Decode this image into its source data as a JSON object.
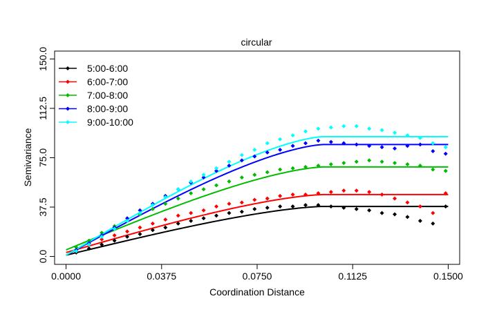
{
  "chart_data": {
    "type": "scatter",
    "title": "circular",
    "xlabel": "Coordination Distance",
    "ylabel": "Semivariance",
    "xlim": [
      -0.0045,
      0.1545
    ],
    "ylim": [
      -6.0,
      156.0
    ],
    "x_ticks": [
      0.0,
      0.0375,
      0.075,
      0.1125,
      0.15
    ],
    "x_tick_labels": [
      "0.0000",
      "0.0375",
      "0.0750",
      "0.1125",
      "0.1500"
    ],
    "y_ticks": [
      0.0,
      37.5,
      75.0,
      112.5,
      150.0
    ],
    "y_tick_labels": [
      "0.0",
      "37.5",
      "75.0",
      "112.5",
      "150.0"
    ],
    "grid": false,
    "legend_position": "top-left",
    "series": [
      {
        "name": "5:00-6:00",
        "color": "#000000",
        "fit": {
          "model": "circular",
          "nugget": 1.0,
          "sill": 38.0,
          "range": 0.101
        },
        "points_x": [
          0.004,
          0.009,
          0.014,
          0.019,
          0.024,
          0.029,
          0.034,
          0.039,
          0.044,
          0.049,
          0.054,
          0.059,
          0.064,
          0.069,
          0.074,
          0.079,
          0.084,
          0.089,
          0.094,
          0.099,
          0.104,
          0.109,
          0.114,
          0.119,
          0.124,
          0.129,
          0.134,
          0.139,
          0.144,
          0.149
        ],
        "points_y": [
          3,
          6,
          9,
          12,
          15,
          17,
          20,
          22,
          25,
          27,
          29,
          31,
          33,
          34,
          36,
          37,
          38,
          38,
          39,
          39,
          38,
          37,
          36,
          35,
          33,
          32,
          30,
          27,
          25,
          38
        ]
      },
      {
        "name": "6:00-7:00",
        "color": "#ff0000",
        "fit": {
          "model": "circular",
          "nugget": 3.0,
          "sill": 47.0,
          "range": 0.101
        },
        "points_x": [
          0.004,
          0.009,
          0.014,
          0.019,
          0.024,
          0.029,
          0.034,
          0.039,
          0.044,
          0.049,
          0.054,
          0.059,
          0.064,
          0.069,
          0.074,
          0.079,
          0.084,
          0.089,
          0.094,
          0.099,
          0.104,
          0.109,
          0.114,
          0.119,
          0.124,
          0.129,
          0.134,
          0.139,
          0.144,
          0.149
        ],
        "points_y": [
          5,
          9,
          13,
          16,
          19,
          22,
          25,
          28,
          31,
          33,
          35,
          38,
          40,
          41,
          43,
          44,
          46,
          47,
          47,
          48,
          49,
          50,
          50,
          49,
          47,
          44,
          41,
          38,
          33,
          48
        ]
      },
      {
        "name": "7:00-8:00",
        "color": "#00bb00",
        "fit": {
          "model": "circular",
          "nugget": 5.0,
          "sill": 68.0,
          "range": 0.101
        },
        "points_x": [
          0.004,
          0.009,
          0.014,
          0.019,
          0.024,
          0.029,
          0.034,
          0.039,
          0.044,
          0.049,
          0.054,
          0.059,
          0.064,
          0.069,
          0.074,
          0.079,
          0.084,
          0.089,
          0.094,
          0.099,
          0.104,
          0.109,
          0.114,
          0.119,
          0.124,
          0.129,
          0.134,
          0.139,
          0.144,
          0.149
        ],
        "points_y": [
          7,
          12,
          18,
          23,
          27,
          32,
          36,
          40,
          44,
          48,
          51,
          54,
          57,
          60,
          62,
          64,
          66,
          67,
          68,
          69,
          70,
          71,
          72,
          73,
          72,
          71,
          70,
          69,
          66,
          65
        ]
      },
      {
        "name": "8:00-9:00",
        "color": "#0000ff",
        "fit": {
          "model": "circular",
          "nugget": 1.0,
          "sill": 85.0,
          "range": 0.101
        },
        "points_x": [
          0.004,
          0.009,
          0.014,
          0.019,
          0.024,
          0.029,
          0.034,
          0.039,
          0.044,
          0.049,
          0.054,
          0.059,
          0.064,
          0.069,
          0.074,
          0.079,
          0.084,
          0.089,
          0.094,
          0.099,
          0.104,
          0.109,
          0.114,
          0.119,
          0.124,
          0.129,
          0.134,
          0.139,
          0.144,
          0.149
        ],
        "points_y": [
          5,
          10,
          16,
          22,
          29,
          35,
          40,
          46,
          51,
          56,
          60,
          65,
          69,
          73,
          76,
          79,
          81,
          84,
          86,
          88,
          87,
          86,
          85,
          84,
          83,
          82,
          84,
          85,
          80,
          78
        ]
      },
      {
        "name": "9:00-10:00",
        "color": "#00ffff",
        "fit": {
          "model": "circular",
          "nugget": 1.0,
          "sill": 91.0,
          "range": 0.101
        },
        "points_x": [
          0.004,
          0.009,
          0.014,
          0.019,
          0.024,
          0.029,
          0.034,
          0.039,
          0.044,
          0.049,
          0.054,
          0.059,
          0.064,
          0.069,
          0.074,
          0.079,
          0.084,
          0.089,
          0.094,
          0.099,
          0.104,
          0.109,
          0.114,
          0.119,
          0.124,
          0.129,
          0.134,
          0.139,
          0.144,
          0.149
        ],
        "points_y": [
          4,
          9,
          15,
          21,
          27,
          33,
          39,
          45,
          51,
          57,
          62,
          67,
          72,
          77,
          81,
          86,
          89,
          92,
          95,
          97,
          98,
          99,
          99,
          97,
          96,
          94,
          92,
          90,
          86,
          83
        ]
      }
    ]
  }
}
